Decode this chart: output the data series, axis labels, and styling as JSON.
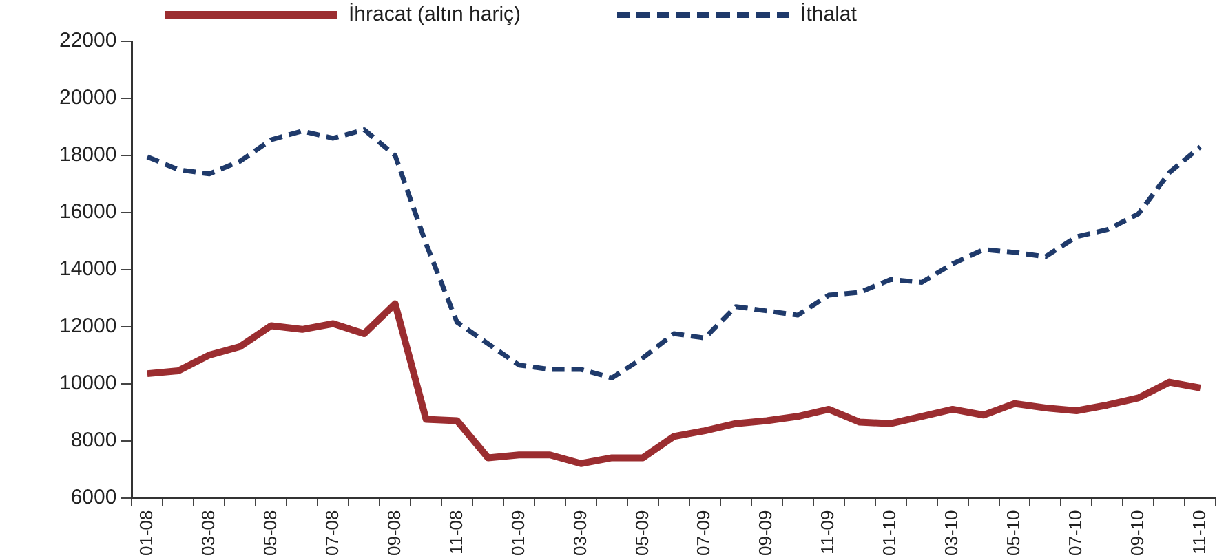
{
  "chart_data": {
    "type": "line",
    "categories": [
      "01-08",
      null,
      "03-08",
      null,
      "05-08",
      null,
      "07-08",
      null,
      "09-08",
      null,
      "11-08",
      null,
      "01-09",
      null,
      "03-09",
      null,
      "05-09",
      null,
      "07-09",
      null,
      "09-09",
      null,
      "11-09",
      null,
      "01-10",
      null,
      "03-10",
      null,
      "05-10",
      null,
      "07-10",
      null,
      "09-10",
      null,
      "11-10"
    ],
    "series": [
      {
        "name": "İhracat (altın hariç)",
        "color": "#9b2d30",
        "line_style": "solid",
        "values": [
          10350,
          10450,
          11000,
          11300,
          12030,
          11900,
          12100,
          11750,
          12800,
          8750,
          8700,
          7400,
          7500,
          7500,
          7200,
          7400,
          7400,
          8150,
          8350,
          8600,
          8700,
          8850,
          9100,
          8650,
          8600,
          8850,
          9100,
          8900,
          9300,
          9150,
          9050,
          9250,
          9500,
          10050,
          9850
        ]
      },
      {
        "name": "İthalat",
        "color": "#1f3a6b",
        "line_style": "dashed",
        "values": [
          17950,
          17500,
          17350,
          17800,
          18550,
          18850,
          18600,
          18900,
          18000,
          14900,
          12150,
          11400,
          10650,
          10500,
          10500,
          10200,
          10900,
          11750,
          11600,
          12700,
          12550,
          12400,
          13100,
          13200,
          13650,
          13550,
          14200,
          14700,
          14600,
          14450,
          15150,
          15400,
          15950,
          17400,
          18300
        ]
      }
    ],
    "ylim": [
      6000,
      22000
    ],
    "yticks": [
      6000,
      8000,
      10000,
      12000,
      14000,
      16000,
      18000,
      20000,
      22000
    ],
    "grid": false,
    "legend": "top",
    "marker": "none"
  }
}
